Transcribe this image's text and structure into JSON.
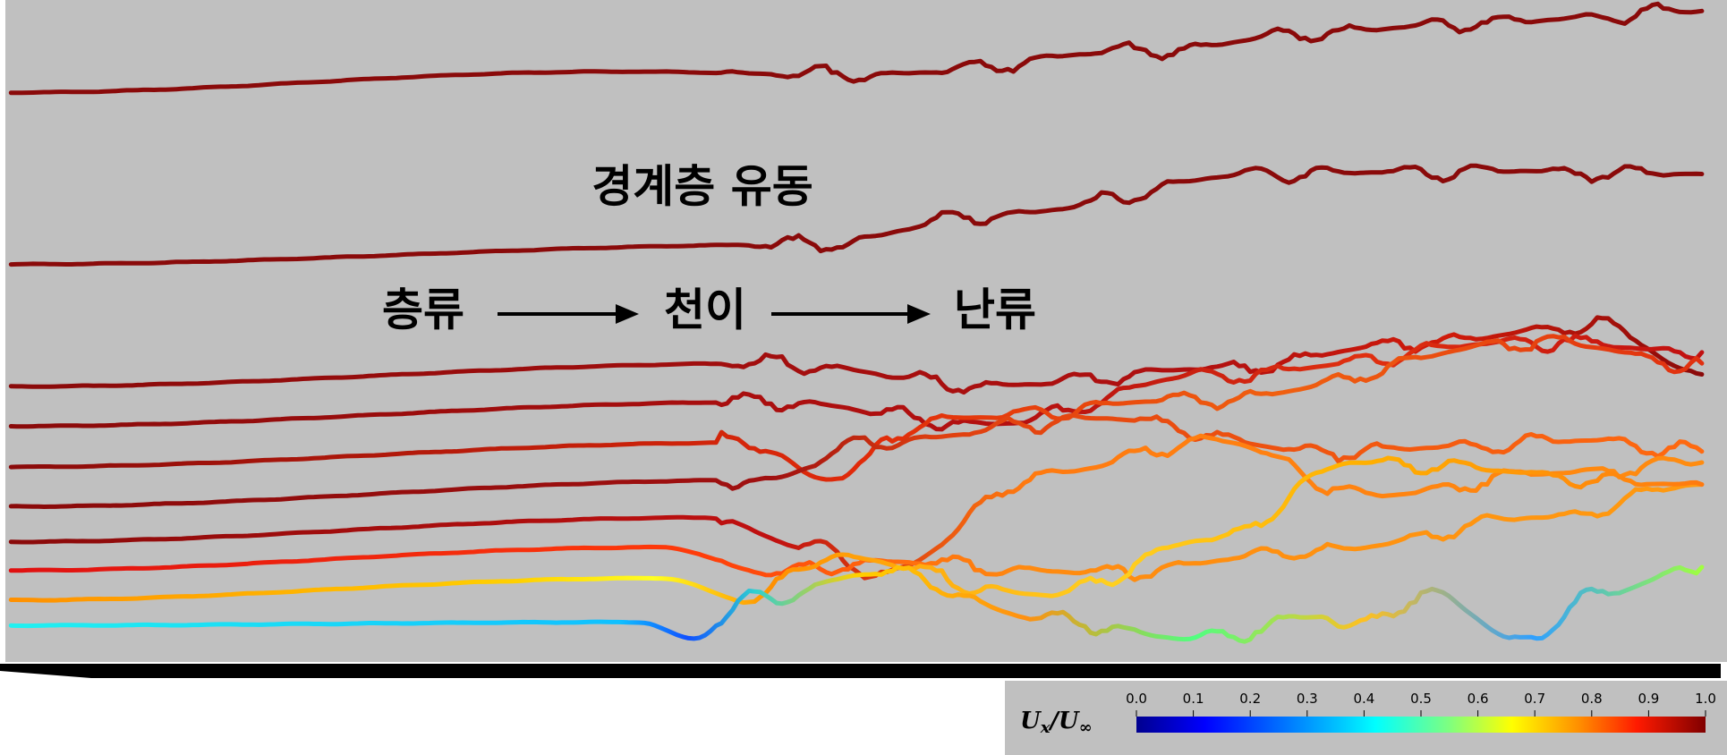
{
  "annotations": {
    "title": "경계층 유동",
    "stage_1": "층류",
    "stage_2": "천이",
    "stage_3": "난류"
  },
  "colorbar": {
    "label_parts": [
      "U",
      "x",
      "/U",
      "∞"
    ],
    "ticks": [
      "0.0",
      "0.1",
      "0.2",
      "0.3",
      "0.4",
      "0.5",
      "0.6",
      "0.7",
      "0.8",
      "0.9",
      "1.0"
    ]
  }
}
